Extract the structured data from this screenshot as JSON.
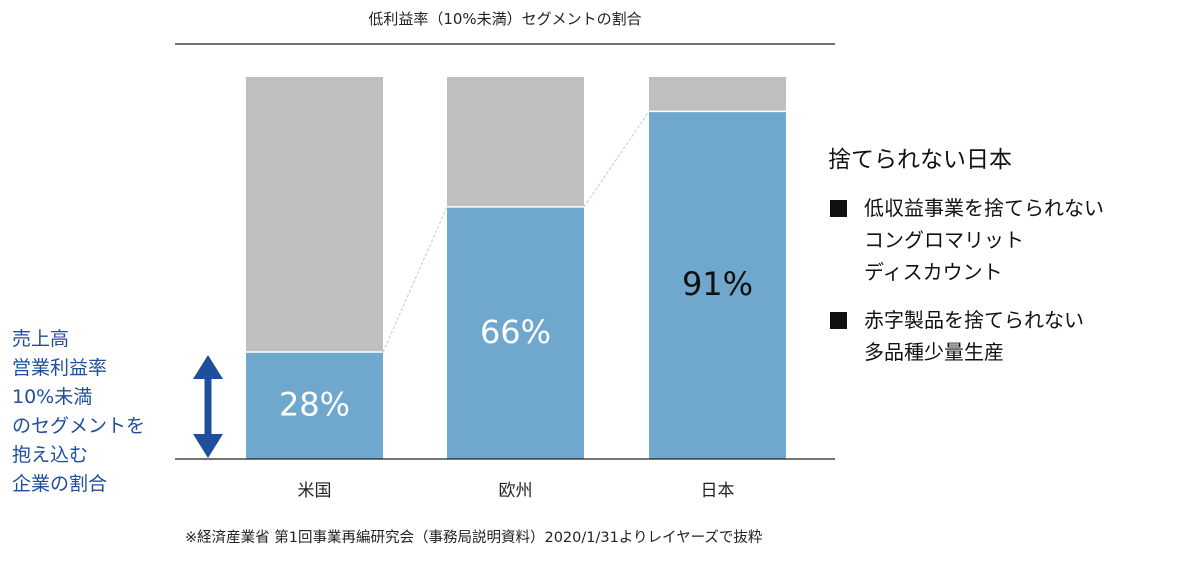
{
  "title": "低利益率（10%未満）セグメントの割合",
  "left_label": [
    "売上高",
    "営業利益率",
    "10%未満",
    "のセグメントを",
    "抱え込む",
    "企業の割合"
  ],
  "right_panel": {
    "heading": "捨てられない日本",
    "bullets": [
      {
        "lines": [
          "低収益事業を捨てられない",
          "コングロマリット",
          "ディスカウント"
        ]
      },
      {
        "lines": [
          "赤字製品を捨てられない",
          "多品種少量生産"
        ]
      }
    ]
  },
  "source": "※経済産業省 第1回事業再編研究会（事務局説明資料）2020/1/31よりレイヤーズで抜粋",
  "colors": {
    "low_margin": "#6fa8cc",
    "rest": "#bfbfbf",
    "arrow": "#1f4e9c",
    "left_text": "#1f4e9c"
  },
  "chart_data": {
    "type": "bar",
    "stacked": true,
    "title": "低利益率（10%未満）セグメントの割合",
    "categories": [
      "米国",
      "欧州",
      "日本"
    ],
    "series": [
      {
        "values": [
          28,
          66,
          91
        ],
        "color": "#6fa8cc"
      },
      {
        "values": [
          72,
          34,
          9
        ],
        "color": "#bfbfbf"
      }
    ],
    "data_labels": [
      "28%",
      "66%",
      "91%"
    ],
    "ylim": [
      0,
      100
    ],
    "grid": false,
    "axis_ticks_y": false
  }
}
